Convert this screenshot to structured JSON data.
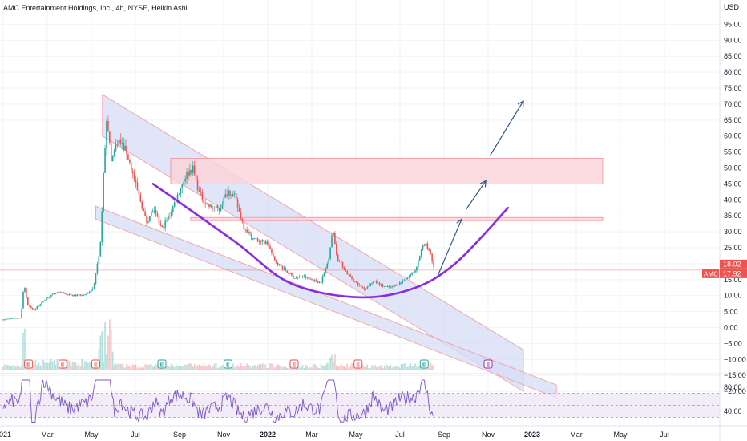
{
  "title": "AMC Entertainment Holdings, Inc., 4h, NYSE, Heikin Ashi",
  "currency": "USD",
  "colors": {
    "up": "#26a69a",
    "down": "#ef5350",
    "channel_fill": "#d6dcf5",
    "channel_stroke": "#f4a7ad",
    "zone_fill": "#fbd3d8",
    "zone_stroke": "#f28c97",
    "arc": "#8a2be2",
    "arrow": "#2e5a8a",
    "rsi": "#7e57c2",
    "rsi_band": "#ede7f6",
    "price_line": "#ef5350",
    "badge": "#ef5350"
  },
  "chart_data": {
    "type": "line",
    "style": "Heikin Ashi candlestick",
    "ticker": "AMC",
    "y_range": [
      -22,
      99
    ],
    "y_ticks": [
      "95.00",
      "90.00",
      "85.00",
      "80.00",
      "75.00",
      "70.00",
      "65.00",
      "60.00",
      "55.00",
      "50.00",
      "45.00",
      "40.00",
      "35.00",
      "30.00",
      "25.00",
      "20.00",
      "15.00",
      "10.00",
      "5.00",
      "0.00",
      "−5.00",
      "−10.00",
      "−15.00",
      "−20.00"
    ],
    "y_tick_values": [
      95,
      90,
      85,
      80,
      75,
      70,
      65,
      60,
      55,
      50,
      45,
      40,
      35,
      30,
      25,
      20,
      15,
      10,
      5,
      0,
      -5,
      -10,
      -15,
      -20
    ],
    "x_ticks": [
      "2021",
      "Mar",
      "May",
      "Jul",
      "Sep",
      "Nov",
      "2022",
      "Mar",
      "May",
      "Jul",
      "Sep",
      "Nov",
      "2023",
      "Mar",
      "May",
      "Jul"
    ],
    "x_tick_month_index": [
      0,
      2,
      4,
      6,
      8,
      10,
      12,
      14,
      16,
      18,
      20,
      22,
      24,
      26,
      28,
      30
    ],
    "price_labels": {
      "last": "18.02",
      "current": "17.92",
      "ticker": "AMC"
    },
    "price_key_points": [
      {
        "m": 0.0,
        "p": 2.5
      },
      {
        "m": 0.8,
        "p": 3.0
      },
      {
        "m": 0.95,
        "p": 14.0
      },
      {
        "m": 1.1,
        "p": 7.0
      },
      {
        "m": 1.4,
        "p": 5.5
      },
      {
        "m": 2.0,
        "p": 9.5
      },
      {
        "m": 2.5,
        "p": 11.0
      },
      {
        "m": 3.2,
        "p": 10.0
      },
      {
        "m": 3.8,
        "p": 10.5
      },
      {
        "m": 4.1,
        "p": 12.5
      },
      {
        "m": 4.4,
        "p": 25.0
      },
      {
        "m": 4.6,
        "p": 55.0
      },
      {
        "m": 4.7,
        "p": 67.0
      },
      {
        "m": 4.9,
        "p": 52.0
      },
      {
        "m": 5.2,
        "p": 59.0
      },
      {
        "m": 5.6,
        "p": 55.0
      },
      {
        "m": 6.0,
        "p": 45.0
      },
      {
        "m": 6.3,
        "p": 38.0
      },
      {
        "m": 6.5,
        "p": 33.0
      },
      {
        "m": 6.8,
        "p": 37.0
      },
      {
        "m": 7.2,
        "p": 31.0
      },
      {
        "m": 7.6,
        "p": 36.0
      },
      {
        "m": 8.0,
        "p": 43.0
      },
      {
        "m": 8.3,
        "p": 48.0
      },
      {
        "m": 8.6,
        "p": 50.0
      },
      {
        "m": 8.9,
        "p": 42.0
      },
      {
        "m": 9.3,
        "p": 38.0
      },
      {
        "m": 9.8,
        "p": 37.0
      },
      {
        "m": 10.2,
        "p": 43.0
      },
      {
        "m": 10.5,
        "p": 41.0
      },
      {
        "m": 10.9,
        "p": 32.0
      },
      {
        "m": 11.3,
        "p": 28.0
      },
      {
        "m": 11.7,
        "p": 27.0
      },
      {
        "m": 12.0,
        "p": 26.5
      },
      {
        "m": 12.3,
        "p": 21.0
      },
      {
        "m": 12.7,
        "p": 18.5
      },
      {
        "m": 13.2,
        "p": 15.5
      },
      {
        "m": 13.6,
        "p": 16.0
      },
      {
        "m": 14.0,
        "p": 15.0
      },
      {
        "m": 14.4,
        "p": 14.0
      },
      {
        "m": 14.75,
        "p": 21.0
      },
      {
        "m": 14.95,
        "p": 31.0
      },
      {
        "m": 15.15,
        "p": 22.0
      },
      {
        "m": 15.6,
        "p": 17.0
      },
      {
        "m": 16.0,
        "p": 14.0
      },
      {
        "m": 16.4,
        "p": 12.0
      },
      {
        "m": 16.8,
        "p": 14.5
      },
      {
        "m": 17.2,
        "p": 13.0
      },
      {
        "m": 17.6,
        "p": 12.5
      },
      {
        "m": 18.0,
        "p": 14.0
      },
      {
        "m": 18.4,
        "p": 16.0
      },
      {
        "m": 18.7,
        "p": 18.0
      },
      {
        "m": 19.0,
        "p": 25.0
      },
      {
        "m": 19.2,
        "p": 26.0
      },
      {
        "m": 19.4,
        "p": 23.0
      },
      {
        "m": 19.55,
        "p": 18.0
      }
    ],
    "earnings_markers": [
      {
        "m": 1.15,
        "label": "E",
        "kind": "red"
      },
      {
        "m": 2.7,
        "label": "E",
        "kind": "red"
      },
      {
        "m": 4.2,
        "label": "E",
        "kind": "red"
      },
      {
        "m": 7.2,
        "label": "E",
        "kind": "green"
      },
      {
        "m": 10.2,
        "label": "E",
        "kind": "green"
      },
      {
        "m": 13.2,
        "label": "E",
        "kind": "red"
      },
      {
        "m": 16.1,
        "label": "E",
        "kind": "red"
      },
      {
        "m": 19.1,
        "label": "E",
        "kind": "green"
      },
      {
        "m": 22.0,
        "label": "E",
        "kind": "purple"
      }
    ],
    "falling_channel_upper": {
      "start": [
        4.5,
        73
      ],
      "end": [
        23.6,
        -7
      ],
      "width": 13
    },
    "falling_channel_lower": {
      "start": [
        4.2,
        38
      ],
      "end": [
        25.1,
        -18
      ],
      "width": 4
    },
    "resistance_zones": [
      {
        "m_start": 7.6,
        "m_end": 27.2,
        "p_low": 45,
        "p_high": 53
      },
      {
        "m_start": 8.5,
        "m_end": 27.2,
        "p_low": 33.5,
        "p_high": 34.5
      }
    ],
    "cup_arc": [
      [
        6.8,
        45
      ],
      [
        10.5,
        27
      ],
      [
        13.0,
        14.0
      ],
      [
        16.0,
        9.5
      ],
      [
        18.5,
        12.0
      ],
      [
        20.5,
        20.0
      ],
      [
        22.9,
        37.5
      ]
    ],
    "arrows": [
      [
        [
          19.7,
          16
        ],
        [
          20.8,
          34
        ]
      ],
      [
        [
          21.0,
          37
        ],
        [
          21.9,
          46
        ]
      ],
      [
        [
          22.1,
          54
        ],
        [
          23.6,
          71
        ]
      ]
    ],
    "rsi_axis": {
      "ticks": [
        "80.00",
        "40.00"
      ],
      "tick_values": [
        80,
        40
      ],
      "range": [
        20,
        100
      ],
      "band": [
        30,
        70
      ]
    }
  }
}
